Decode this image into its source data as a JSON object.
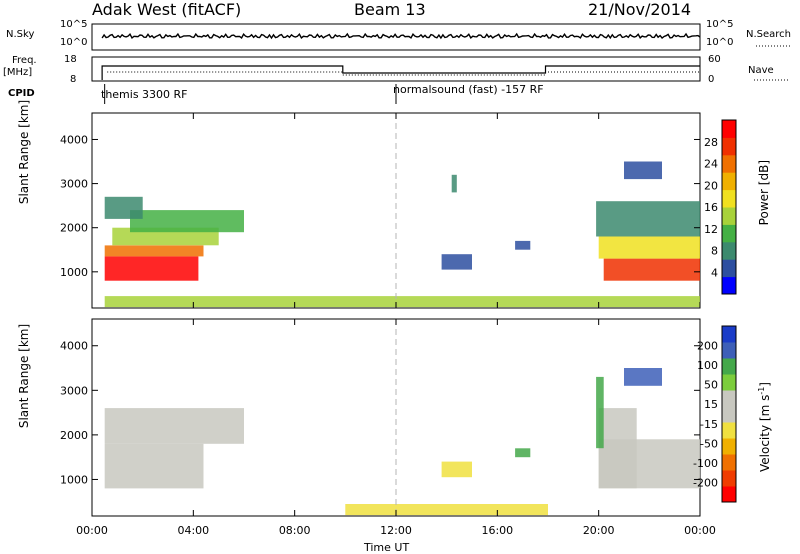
{
  "header": {
    "station": "Adak West (fitACF)",
    "beam": "Beam 13",
    "date": "21/Nov/2014"
  },
  "top_panels": {
    "nsky_label": "N.Sky",
    "nsky_ticks": [
      "10^5",
      "10^0"
    ],
    "nsearch_label": "N.Search",
    "nsearch_ticks": [
      "10^5",
      "10^0"
    ],
    "freq_label": "Freq.",
    "freq_unit": "[MHz]",
    "freq_ticks": [
      "18",
      "8"
    ],
    "nave_label": "Nave",
    "nave_ticks": [
      "60",
      "0"
    ],
    "cpid_label": "CPID",
    "cpid_modes": [
      {
        "name": "themis 3300 RF",
        "start_hour": 0.5
      },
      {
        "name": "normalsound (fast) -157 RF",
        "start_hour": 12.0
      }
    ]
  },
  "colors": {
    "power_scale": [
      "#0000ff",
      "#2d4fa0",
      "#3c8a6e",
      "#44b044",
      "#a8d23a",
      "#f0e020",
      "#f0b000",
      "#f07000",
      "#f03000",
      "#ff0000"
    ],
    "velocity_scale": [
      "#ff0000",
      "#f03c00",
      "#f07000",
      "#f0b000",
      "#f0e040",
      "#c8c8c0",
      "#c8c8c0",
      "#7ccd3c",
      "#44a84a",
      "#3d5fb8",
      "#1a3cc8"
    ],
    "dashed_line": "#b4b4b4"
  },
  "chart_data": [
    {
      "type": "heatmap",
      "title": "",
      "xlabel": "",
      "ylabel": "Slant Range [km]",
      "colorbar_label": "Power [dB]",
      "colorbar_ticks": [
        "28",
        "24",
        "20",
        "16",
        "12",
        "8",
        "4"
      ],
      "colorbar_range": [
        0,
        30
      ],
      "x_ticks": [
        "00:00",
        "04:00",
        "08:00",
        "12:00",
        "16:00",
        "20:00",
        "00:00"
      ],
      "xlim_hours": [
        0,
        24
      ],
      "y_ticks": [
        "1000",
        "2000",
        "3000",
        "4000"
      ],
      "ylim_km": [
        180,
        4600
      ],
      "dashed_line_hour": 12,
      "regions": [
        {
          "x": [
            0.5,
            4.2
          ],
          "y": [
            800,
            1350
          ],
          "value": 28
        },
        {
          "x": [
            0.5,
            4.4
          ],
          "y": [
            1350,
            1600
          ],
          "value": 22
        },
        {
          "x": [
            0.8,
            5.0
          ],
          "y": [
            1600,
            2000
          ],
          "value": 14
        },
        {
          "x": [
            1.5,
            6.0
          ],
          "y": [
            1900,
            2400
          ],
          "value": 9
        },
        {
          "x": [
            0.5,
            2.0
          ],
          "y": [
            2200,
            2700
          ],
          "value": 6
        },
        {
          "x": [
            20.2,
            24.0
          ],
          "y": [
            800,
            1300
          ],
          "value": 26
        },
        {
          "x": [
            20.0,
            24.0
          ],
          "y": [
            1300,
            1800
          ],
          "value": 16
        },
        {
          "x": [
            19.9,
            24.0
          ],
          "y": [
            1800,
            2600
          ],
          "value": 8
        },
        {
          "x": [
            21.0,
            22.5
          ],
          "y": [
            3100,
            3500
          ],
          "value": 5
        },
        {
          "x": [
            13.8,
            15.0
          ],
          "y": [
            1050,
            1400
          ],
          "value": 5
        },
        {
          "x": [
            16.7,
            17.3
          ],
          "y": [
            1500,
            1700
          ],
          "value": 5
        },
        {
          "x": [
            14.2,
            14.4
          ],
          "y": [
            2800,
            3200
          ],
          "value": 6
        },
        {
          "x": [
            0.5,
            24.0
          ],
          "y": [
            200,
            450
          ],
          "value": 12
        }
      ]
    },
    {
      "type": "heatmap",
      "title": "",
      "xlabel": "Time UT",
      "ylabel": "Slant Range [km]",
      "colorbar_label": "Velocity [m s^-1]",
      "colorbar_ticks": [
        "200",
        "100",
        "50",
        "15",
        "-15",
        "-50",
        "-100",
        "-200"
      ],
      "colorbar_range": [
        -250,
        250
      ],
      "x_ticks": [
        "00:00",
        "04:00",
        "08:00",
        "12:00",
        "16:00",
        "20:00",
        "00:00"
      ],
      "xlim_hours": [
        0,
        24
      ],
      "y_ticks": [
        "1000",
        "2000",
        "3000",
        "4000"
      ],
      "ylim_km": [
        180,
        4600
      ],
      "dashed_line_hour": 12,
      "regions": [
        {
          "x": [
            0.5,
            4.4
          ],
          "y": [
            800,
            1800
          ],
          "value": 0
        },
        {
          "x": [
            0.5,
            6.0
          ],
          "y": [
            1800,
            2600
          ],
          "value": 0
        },
        {
          "x": [
            20.0,
            24.0
          ],
          "y": [
            800,
            1900
          ],
          "value": 0
        },
        {
          "x": [
            20.0,
            21.5
          ],
          "y": [
            800,
            2600
          ],
          "value": 40
        },
        {
          "x": [
            19.9,
            20.2
          ],
          "y": [
            1700,
            3300
          ],
          "value": 150
        },
        {
          "x": [
            21.0,
            22.5
          ],
          "y": [
            3100,
            3500
          ],
          "value": 200
        },
        {
          "x": [
            13.8,
            15.0
          ],
          "y": [
            1050,
            1400
          ],
          "value": -60
        },
        {
          "x": [
            16.7,
            17.3
          ],
          "y": [
            1500,
            1700
          ],
          "value": 120
        },
        {
          "x": [
            10.0,
            18.0
          ],
          "y": [
            200,
            450
          ],
          "value": -60
        }
      ]
    }
  ]
}
